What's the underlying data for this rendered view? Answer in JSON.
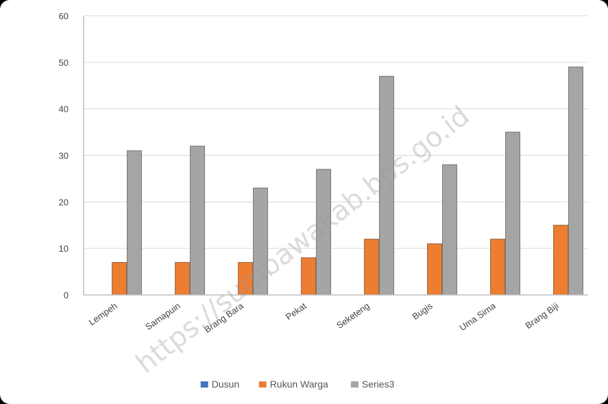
{
  "chart_data": {
    "type": "bar",
    "categories": [
      "Lempeh",
      "Samapuin",
      "Brang Bara",
      "Pekat",
      "Seketeng",
      "Bugis",
      "Uma Sima",
      "Brang Biji"
    ],
    "series": [
      {
        "name": "Dusun",
        "values": [
          0,
          0,
          0,
          0,
          0,
          0,
          0,
          0
        ],
        "color": "#4472C4"
      },
      {
        "name": "Rukun Warga",
        "values": [
          7,
          7,
          7,
          8,
          12,
          11,
          12,
          15
        ],
        "color": "#ED7D31"
      },
      {
        "name": "Series3",
        "values": [
          31,
          32,
          23,
          27,
          47,
          28,
          35,
          49
        ],
        "color": "#A5A5A5"
      }
    ],
    "yticks": [
      "0",
      "10",
      "20",
      "30",
      "40",
      "50",
      "60"
    ],
    "ylim": [
      0,
      60
    ],
    "grid": true,
    "legend_position": "bottom",
    "title": "",
    "xlabel": "",
    "ylabel": ""
  },
  "watermark": "https://sumbawakab.bps.go.id"
}
